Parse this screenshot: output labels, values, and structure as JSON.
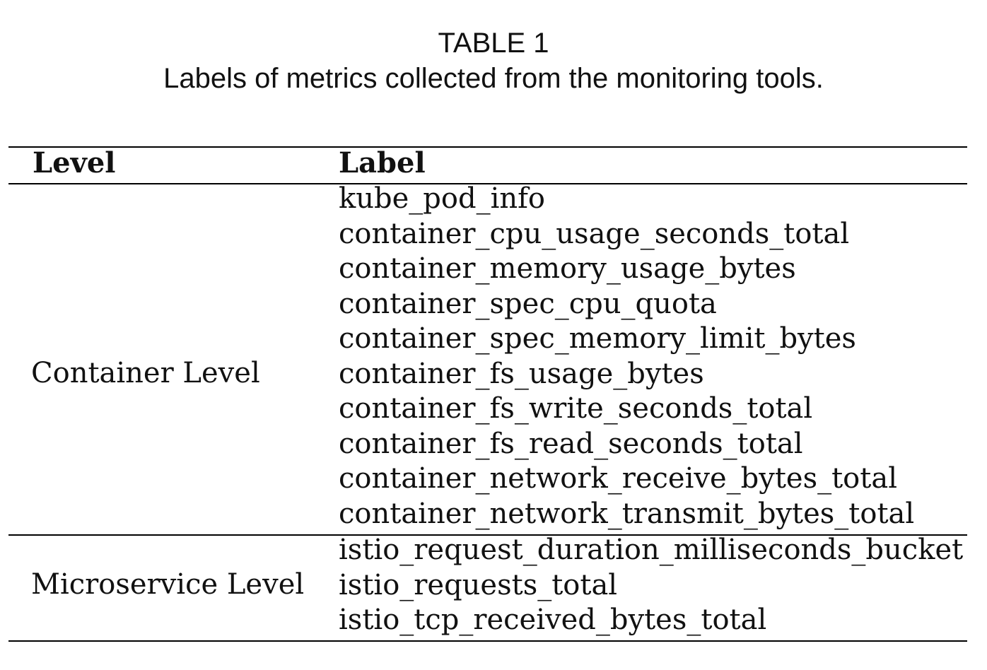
{
  "caption": {
    "title": "TABLE 1",
    "text": "Labels of metrics collected from the monitoring tools."
  },
  "table": {
    "headers": {
      "level": "Level",
      "label": "Label"
    },
    "groups": [
      {
        "level": "Container Level",
        "labels": [
          "kube_pod_info",
          "container_cpu_usage_seconds_total",
          "container_memory_usage_bytes",
          "container_spec_cpu_quota",
          "container_spec_memory_limit_bytes",
          "container_fs_usage_bytes",
          "container_fs_write_seconds_total",
          "container_fs_read_seconds_total",
          "container_network_receive_bytes_total",
          "container_network_transmit_bytes_total"
        ]
      },
      {
        "level": "Microservice Level",
        "labels": [
          "istio_request_duration_milliseconds_bucket",
          "istio_requests_total",
          "istio_tcp_received_bytes_total"
        ]
      }
    ]
  }
}
